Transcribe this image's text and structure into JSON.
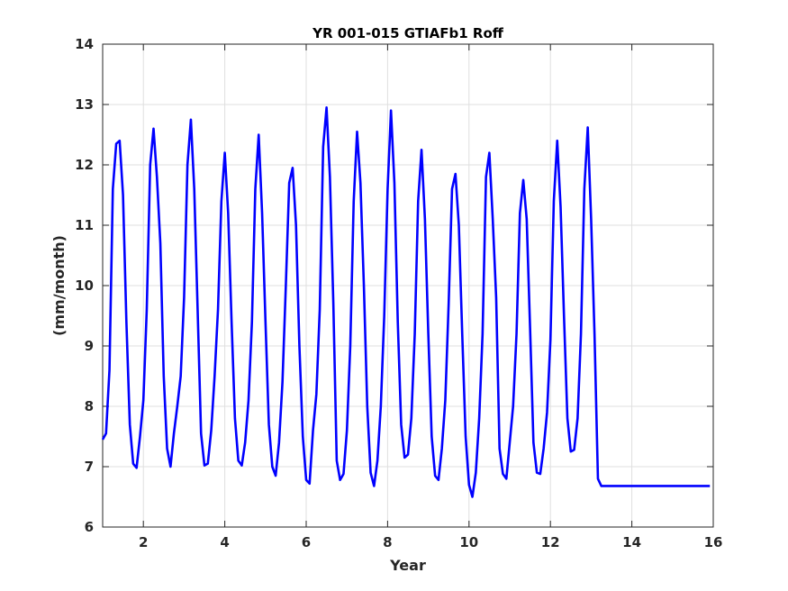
{
  "chart_data": {
    "type": "line",
    "title": "YR 001-015 GTIAFb1 Roff",
    "xlabel": "Year",
    "ylabel": "(mm/month)",
    "xlim": [
      1,
      16
    ],
    "ylim": [
      6,
      14
    ],
    "xticks": [
      2,
      4,
      6,
      8,
      10,
      12,
      14,
      16
    ],
    "yticks": [
      6,
      7,
      8,
      9,
      10,
      11,
      12,
      13,
      14
    ],
    "grid": true,
    "legend": "none",
    "series": [
      {
        "color": "#0000ff",
        "x": [
          1.0,
          1.083,
          1.167,
          1.25,
          1.333,
          1.417,
          1.5,
          1.583,
          1.667,
          1.75,
          1.833,
          1.917,
          2.0,
          2.083,
          2.167,
          2.25,
          2.333,
          2.417,
          2.5,
          2.583,
          2.667,
          2.75,
          2.833,
          2.917,
          3.0,
          3.083,
          3.167,
          3.25,
          3.333,
          3.417,
          3.5,
          3.583,
          3.667,
          3.75,
          3.833,
          3.917,
          4.0,
          4.083,
          4.167,
          4.25,
          4.333,
          4.417,
          4.5,
          4.583,
          4.667,
          4.75,
          4.833,
          4.917,
          5.0,
          5.083,
          5.167,
          5.25,
          5.333,
          5.417,
          5.5,
          5.583,
          5.667,
          5.75,
          5.833,
          5.917,
          6.0,
          6.083,
          6.167,
          6.25,
          6.333,
          6.417,
          6.5,
          6.583,
          6.667,
          6.75,
          6.833,
          6.917,
          7.0,
          7.083,
          7.167,
          7.25,
          7.333,
          7.417,
          7.5,
          7.583,
          7.667,
          7.75,
          7.833,
          7.917,
          8.0,
          8.083,
          8.167,
          8.25,
          8.333,
          8.417,
          8.5,
          8.583,
          8.667,
          8.75,
          8.833,
          8.917,
          9.0,
          9.083,
          9.167,
          9.25,
          9.333,
          9.417,
          9.5,
          9.583,
          9.667,
          9.75,
          9.833,
          9.917,
          10.0,
          10.083,
          10.167,
          10.25,
          10.333,
          10.417,
          10.5,
          10.583,
          10.667,
          10.75,
          10.833,
          10.917,
          11.0,
          11.083,
          11.167,
          11.25,
          11.333,
          11.417,
          11.5,
          11.583,
          11.667,
          11.75,
          11.833,
          11.917,
          12.0,
          12.083,
          12.167,
          12.25,
          12.333,
          12.417,
          12.5,
          12.583,
          12.667,
          12.75,
          12.833,
          12.917,
          13.0,
          13.083,
          13.167,
          13.25,
          13.333,
          13.417,
          13.5,
          13.583,
          13.667,
          13.75,
          13.833,
          13.917,
          14.0,
          14.083,
          14.167,
          14.25,
          14.333,
          14.417,
          14.5,
          14.583,
          14.667,
          14.75,
          14.833,
          14.917,
          15.0,
          15.083,
          15.167,
          15.25,
          15.333,
          15.417,
          15.5,
          15.583,
          15.667,
          15.75,
          15.833,
          15.917
        ],
        "y": [
          7.45,
          7.55,
          8.6,
          11.6,
          12.35,
          12.4,
          11.5,
          9.4,
          7.7,
          7.05,
          6.98,
          7.5,
          8.1,
          9.6,
          12.0,
          12.6,
          11.8,
          10.7,
          8.5,
          7.3,
          7.0,
          7.55,
          8.0,
          8.5,
          9.8,
          12.0,
          12.75,
          11.6,
          9.6,
          7.55,
          7.02,
          7.05,
          7.6,
          8.5,
          9.6,
          11.4,
          12.2,
          11.2,
          9.4,
          7.8,
          7.1,
          7.02,
          7.4,
          8.1,
          9.4,
          11.6,
          12.5,
          11.2,
          9.4,
          7.7,
          7.0,
          6.85,
          7.4,
          8.4,
          10.0,
          11.7,
          11.95,
          11.0,
          9.0,
          7.5,
          6.78,
          6.72,
          7.6,
          8.2,
          9.6,
          12.3,
          12.95,
          11.8,
          9.7,
          7.1,
          6.78,
          6.88,
          7.6,
          9.0,
          11.4,
          12.55,
          11.7,
          10.0,
          8.0,
          6.9,
          6.68,
          7.1,
          8.0,
          9.5,
          11.6,
          12.9,
          11.7,
          9.4,
          7.7,
          7.15,
          7.2,
          7.8,
          9.2,
          11.4,
          12.25,
          11.1,
          9.2,
          7.5,
          6.85,
          6.78,
          7.3,
          8.1,
          9.7,
          11.6,
          11.85,
          11.0,
          9.2,
          7.5,
          6.7,
          6.5,
          6.9,
          7.8,
          9.2,
          11.8,
          12.2,
          11.1,
          9.8,
          7.3,
          6.88,
          6.8,
          7.4,
          8.0,
          9.2,
          11.2,
          11.75,
          11.1,
          9.3,
          7.4,
          6.9,
          6.88,
          7.3,
          7.9,
          9.1,
          11.4,
          12.4,
          11.3,
          9.5,
          7.8,
          7.25,
          7.28,
          7.8,
          9.2,
          11.6,
          12.62,
          11.1,
          9.2,
          6.8,
          6.68,
          6.68,
          6.68,
          6.68,
          6.68,
          6.68,
          6.68,
          6.68,
          6.68,
          6.68,
          6.68,
          6.68,
          6.68,
          6.68,
          6.68,
          6.68,
          6.68,
          6.68,
          6.68,
          6.68,
          6.68,
          6.68,
          6.68,
          6.68,
          6.68,
          6.68,
          6.68,
          6.68,
          6.68,
          6.68,
          6.68,
          6.68,
          6.68
        ]
      }
    ]
  }
}
